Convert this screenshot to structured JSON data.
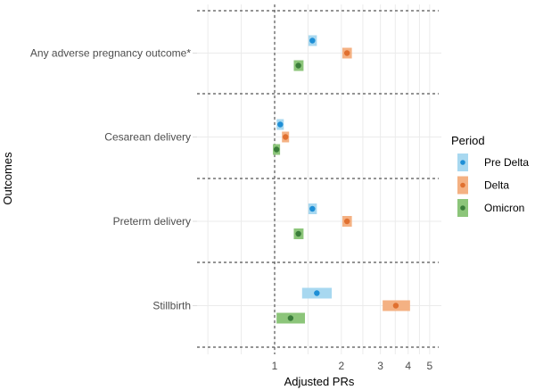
{
  "chart_data": {
    "type": "scatter",
    "subtype": "forest-plot",
    "title": "",
    "xlabel": "Adjusted PRs",
    "ylabel": "Outcomes",
    "x_scale": "log",
    "xlim": [
      0.5,
      5.6
    ],
    "x_ticks": [
      1,
      2,
      3,
      4,
      5
    ],
    "x_tick_labels": [
      "1",
      "2",
      "3",
      "4",
      "5"
    ],
    "reference_line": 1,
    "grid": true,
    "categories": [
      "Any adverse pregnancy outcome*",
      "Cesarean delivery",
      "Preterm delivery",
      "Stillbirth"
    ],
    "legend": {
      "title": "Period",
      "position": "right"
    },
    "series": [
      {
        "name": "Pre Delta",
        "point_color": "#1f8fd6",
        "band_color": "#a8d8f0",
        "values": [
          1.48,
          1.06,
          1.48,
          1.55
        ],
        "ci_low": [
          1.42,
          1.03,
          1.42,
          1.33
        ],
        "ci_high": [
          1.55,
          1.09,
          1.55,
          1.81
        ]
      },
      {
        "name": "Delta",
        "point_color": "#e07030",
        "band_color": "#f4b183",
        "values": [
          2.12,
          1.12,
          2.12,
          3.52
        ],
        "ci_low": [
          2.02,
          1.09,
          2.02,
          3.07
        ],
        "ci_high": [
          2.23,
          1.15,
          2.23,
          4.08
        ]
      },
      {
        "name": "Omicron",
        "point_color": "#3a7d3a",
        "band_color": "#8cc57a",
        "values": [
          1.28,
          1.02,
          1.28,
          1.18
        ],
        "ci_low": [
          1.22,
          0.99,
          1.22,
          1.02
        ],
        "ci_high": [
          1.35,
          1.05,
          1.35,
          1.37
        ]
      }
    ]
  }
}
